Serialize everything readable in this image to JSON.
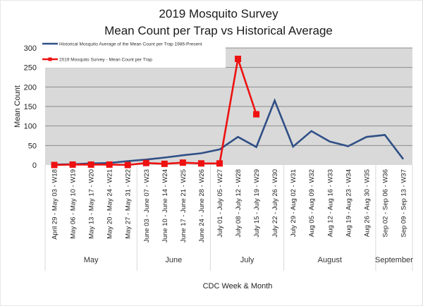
{
  "chart_data": {
    "type": "line",
    "title": "2019 Mosquito Survey",
    "subtitle": "Mean Count per Trap vs Historical Average",
    "xlabel": "CDC Week & Month",
    "ylabel": "Mean Count",
    "ylim": [
      0,
      300
    ],
    "yticks": [
      0,
      50,
      100,
      150,
      200,
      250,
      300
    ],
    "grid": true,
    "legend_position": "top-left",
    "categories": [
      "April 29 - May 03 - W18",
      "May 06 - May 10 - W19",
      "May 13 - May 17 - W20",
      "May 20 - May 24 - W21",
      "May 27 - May 31 - W22",
      "June 03 - June 07 - W23",
      "June 10 - June 14 - W24",
      "June 17 - June 21 - W25",
      "June 24 - June 28 - W26",
      "July 01 - July 05 - W27",
      "July 08 - July 12 - W28",
      "July 15 - July 19 - W29",
      "July 22 - July 26 - W30",
      "July 29 - Aug 02 - W31",
      "Aug 05 - Aug 09 - W32",
      "Aug 12 - Aug 16 - W33",
      "Aug 19 - Aug 23 - W34",
      "Aug 26 - Aug 30 - W35",
      "Sep 02 - Sep 06 - W36",
      "Sep 09 - Sep 13 - W37"
    ],
    "month_groups": [
      {
        "label": "May",
        "count": 5
      },
      {
        "label": "June",
        "count": 4
      },
      {
        "label": "July",
        "count": 4
      },
      {
        "label": "August",
        "count": 5
      },
      {
        "label": "September",
        "count": 2
      }
    ],
    "series": [
      {
        "name": "Historical Mosquito Average of the Mean Count per Trap 1986-Present",
        "color": "#2f4f86",
        "marker": "none",
        "values": [
          1,
          2,
          4,
          5,
          10,
          14,
          19,
          25,
          30,
          40,
          72,
          46,
          165,
          47,
          87,
          60,
          48,
          72,
          77,
          15
        ]
      },
      {
        "name": "2019 Mosquito Survey - Mean Count per Trap",
        "color": "#ee1111",
        "marker": "square",
        "values": [
          0,
          1,
          1,
          1,
          0,
          5,
          3,
          6,
          4,
          4,
          272,
          130,
          null,
          null,
          null,
          null,
          null,
          null,
          null,
          null
        ]
      }
    ]
  },
  "colors": {
    "plot_background": "#d9d9d9",
    "gridline": "#8c8c8c"
  }
}
